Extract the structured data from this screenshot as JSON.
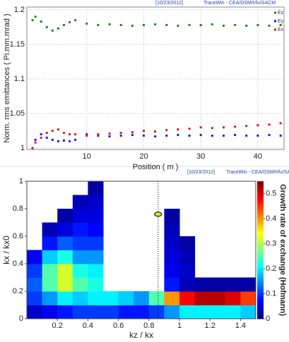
{
  "chart_data": [
    {
      "type": "scatter",
      "date": "[10/23/2012]",
      "source": "TraceWin - CEA/DSM/Irfu/SACM",
      "x_label": "Position ( m )",
      "y_label": "Norm. rms emittances ( Pi.mm.mrad )",
      "x": [
        0.5,
        1,
        2,
        3,
        4,
        5,
        6,
        7,
        8,
        10,
        12,
        14,
        16,
        18,
        20,
        22,
        24,
        26,
        28,
        30,
        32,
        34,
        36,
        38,
        40,
        42,
        44
      ],
      "series": [
        {
          "name": "Ez",
          "color": "#1a8a1a",
          "values": [
            1.185,
            1.19,
            1.183,
            1.175,
            1.17,
            1.173,
            1.178,
            1.182,
            1.185,
            1.18,
            1.178,
            1.179,
            1.178,
            1.177,
            1.178,
            1.179,
            1.178,
            1.177,
            1.178,
            1.178,
            1.179,
            1.177,
            1.178,
            1.177,
            1.178,
            1.177,
            1.178
          ]
        },
        {
          "name": "Ey",
          "color": "#1a1ae0",
          "values": [
            1.0,
            1.012,
            1.02,
            1.015,
            1.012,
            1.01,
            1.011,
            1.01,
            1.012,
            1.02,
            1.018,
            1.017,
            1.018,
            1.019,
            1.018,
            1.017,
            1.018,
            1.019,
            1.018,
            1.019,
            1.018,
            1.018,
            1.019,
            1.018,
            1.018,
            1.019,
            1.018
          ]
        },
        {
          "name": "Ex",
          "color": "#e01a1a",
          "values": [
            1.0,
            1.008,
            1.015,
            1.022,
            1.025,
            1.027,
            1.022,
            1.02,
            1.02,
            1.018,
            1.02,
            1.021,
            1.022,
            1.023,
            1.025,
            1.024,
            1.026,
            1.027,
            1.028,
            1.03,
            1.029,
            1.03,
            1.031,
            1.032,
            1.033,
            1.034,
            1.036
          ]
        }
      ],
      "xlim": [
        -0.5,
        44.6
      ],
      "ylim": [
        0.998,
        1.204
      ],
      "xticks": [
        10,
        20,
        30,
        40
      ],
      "yticks": [
        1,
        1.05,
        1.1,
        1.15,
        1.2
      ],
      "grid": true
    },
    {
      "type": "heatmap",
      "date": "[10/23/2012]",
      "source": "TraceWin - CEA/DSM/Irfu/SACM",
      "x_label": "kz / kx",
      "y_label": "kx / kx0",
      "colorbar_label": "Growth rate of exchange (Hofmann)",
      "x": [
        0.05,
        0.15,
        0.25,
        0.35,
        0.45,
        0.55,
        0.65,
        0.75,
        0.85,
        0.95,
        1.05,
        1.15,
        1.25,
        1.35,
        1.45
      ],
      "y": [
        0.05,
        0.15,
        0.25,
        0.35,
        0.45,
        0.55,
        0.65,
        0.75,
        0.85,
        0.95
      ],
      "z": [
        [
          0.04,
          0.06,
          0.08,
          0.1,
          0.1,
          0.1,
          0.08,
          0.08,
          0.1,
          0.15,
          0.2,
          0.2,
          0.2,
          0.2,
          0.18
        ],
        [
          0.1,
          0.15,
          0.2,
          0.18,
          0.2,
          0.2,
          0.18,
          0.15,
          0.25,
          0.4,
          0.48,
          0.52,
          0.52,
          0.5,
          0.45
        ],
        [
          0.12,
          0.25,
          0.32,
          0.25,
          0.22,
          null,
          null,
          null,
          null,
          0.08,
          0.03,
          0.02,
          0.02,
          0.02,
          0.02
        ],
        [
          0.1,
          0.25,
          0.32,
          0.22,
          0.2,
          null,
          null,
          null,
          null,
          0.06,
          0.04,
          null,
          null,
          null,
          null
        ],
        [
          0.06,
          0.18,
          0.22,
          0.15,
          0.15,
          null,
          null,
          null,
          null,
          0.05,
          0.03,
          null,
          null,
          null,
          null
        ],
        [
          null,
          0.08,
          0.12,
          0.1,
          0.1,
          null,
          null,
          null,
          null,
          0.04,
          0.02,
          null,
          null,
          null,
          null
        ],
        [
          null,
          0.03,
          0.05,
          0.08,
          0.07,
          null,
          null,
          null,
          null,
          0.03,
          null,
          null,
          null,
          null,
          null
        ],
        [
          null,
          null,
          0.02,
          0.05,
          0.05,
          null,
          null,
          null,
          null,
          0.02,
          null,
          null,
          null,
          null,
          null
        ],
        [
          null,
          null,
          null,
          0.03,
          0.04,
          null,
          null,
          null,
          null,
          null,
          null,
          null,
          null,
          null,
          null
        ],
        [
          null,
          null,
          null,
          null,
          0.02,
          null,
          null,
          null,
          null,
          null,
          null,
          null,
          null,
          null,
          null
        ]
      ],
      "xlim": [
        0,
        1.5
      ],
      "ylim": [
        0,
        1
      ],
      "clim": [
        0,
        0.55
      ],
      "xticks": [
        0.2,
        0.4,
        0.6,
        0.8,
        1,
        1.2,
        1.4
      ],
      "yticks": [
        0,
        0.2,
        0.4,
        0.6,
        0.8,
        1
      ],
      "cticks": [
        0,
        0.1,
        0.2,
        0.3,
        0.4,
        0.5
      ],
      "vline": 0.86,
      "marker": [
        0.86,
        0.76
      ],
      "marker_color": "#e8e020"
    }
  ]
}
